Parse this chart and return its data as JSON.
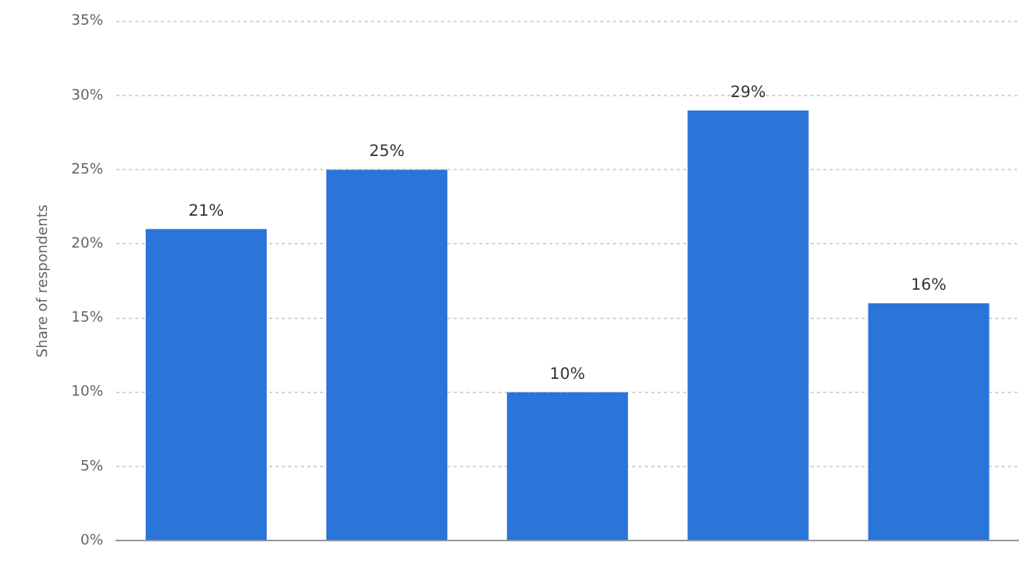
{
  "chart_data": {
    "type": "bar",
    "ylabel": "Share of respondents",
    "categories": [
      null,
      null,
      null,
      null,
      null
    ],
    "values": [
      21,
      25,
      10,
      29,
      16
    ],
    "color": "#2b74d9",
    "value_labels": [
      "21%",
      "25%",
      "10%",
      "29%",
      "16%"
    ],
    "ylim": [
      0,
      35
    ],
    "yticks": [
      {
        "value": 0,
        "label": "0%"
      },
      {
        "value": 5,
        "label": "5%"
      },
      {
        "value": 10,
        "label": "10%"
      },
      {
        "value": 15,
        "label": "15%"
      },
      {
        "value": 20,
        "label": "20%"
      },
      {
        "value": 25,
        "label": "25%"
      },
      {
        "value": 30,
        "label": "30%"
      },
      {
        "value": 35,
        "label": "35%"
      }
    ],
    "grid": "y",
    "legend": false
  }
}
